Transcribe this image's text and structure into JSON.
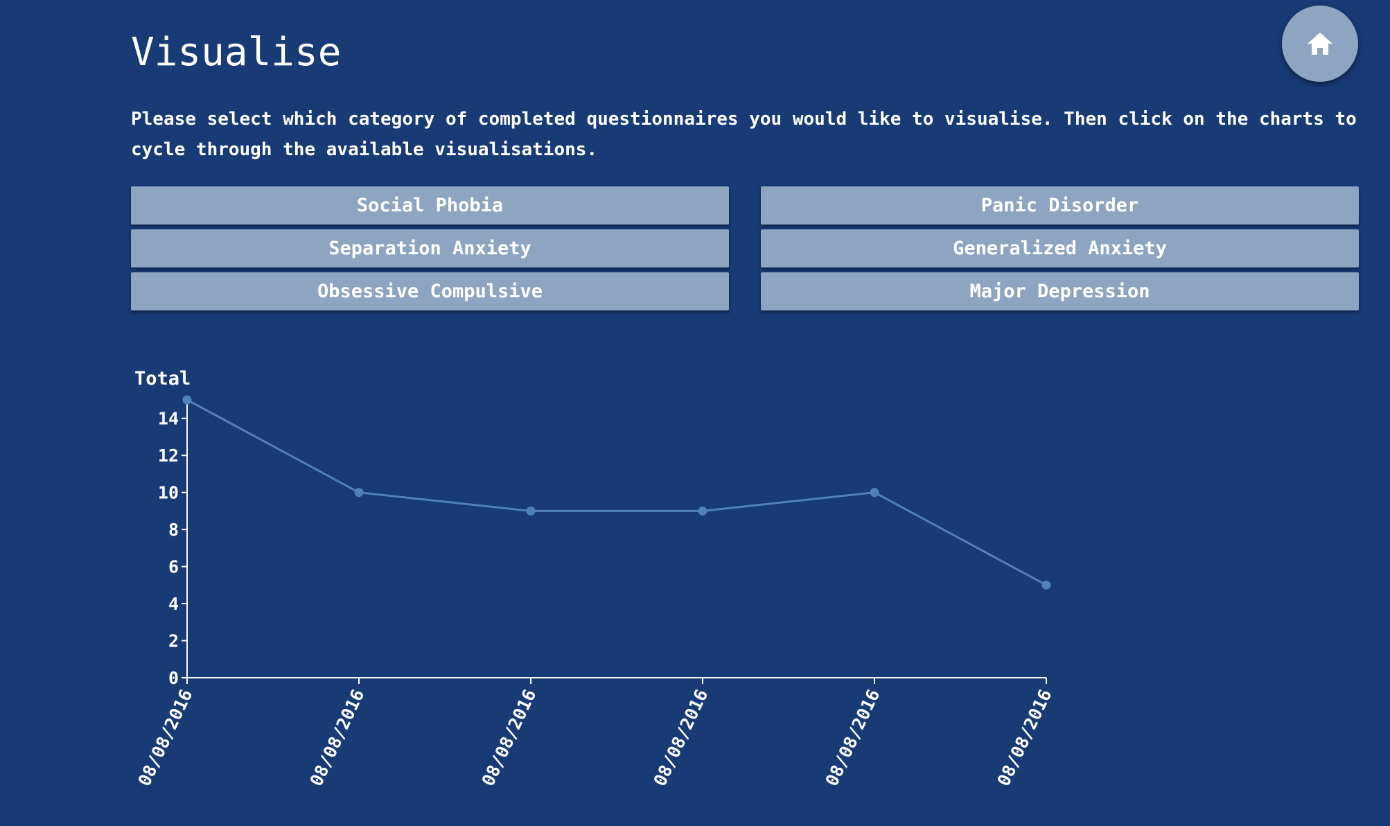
{
  "page": {
    "title": "Visualise",
    "instructions": "Please select which category of completed questionnaires you would like to visualise. Then click on the charts to cycle through the available visualisations."
  },
  "home_button": {
    "icon": "home-icon"
  },
  "categories": [
    {
      "label": "Social Phobia"
    },
    {
      "label": "Panic Disorder"
    },
    {
      "label": "Separation Anxiety"
    },
    {
      "label": "Generalized Anxiety"
    },
    {
      "label": "Obsessive Compulsive"
    },
    {
      "label": "Major Depression"
    }
  ],
  "colors": {
    "background": "#183a75",
    "button": "#8da5c0",
    "line": "#4f81b8",
    "axis": "#ffffff"
  },
  "chart_data": {
    "type": "line",
    "title": "",
    "xlabel": "",
    "ylabel": "Total",
    "x": [
      "08/08/2016",
      "08/08/2016",
      "08/08/2016",
      "08/08/2016",
      "08/08/2016",
      "08/08/2016"
    ],
    "series": [
      {
        "values": [
          15,
          10,
          9,
          9,
          10,
          5
        ]
      }
    ],
    "ylim": [
      0,
      15
    ],
    "yticks": [
      0,
      2,
      4,
      6,
      8,
      10,
      12,
      14
    ],
    "grid": false,
    "legend": "none"
  }
}
